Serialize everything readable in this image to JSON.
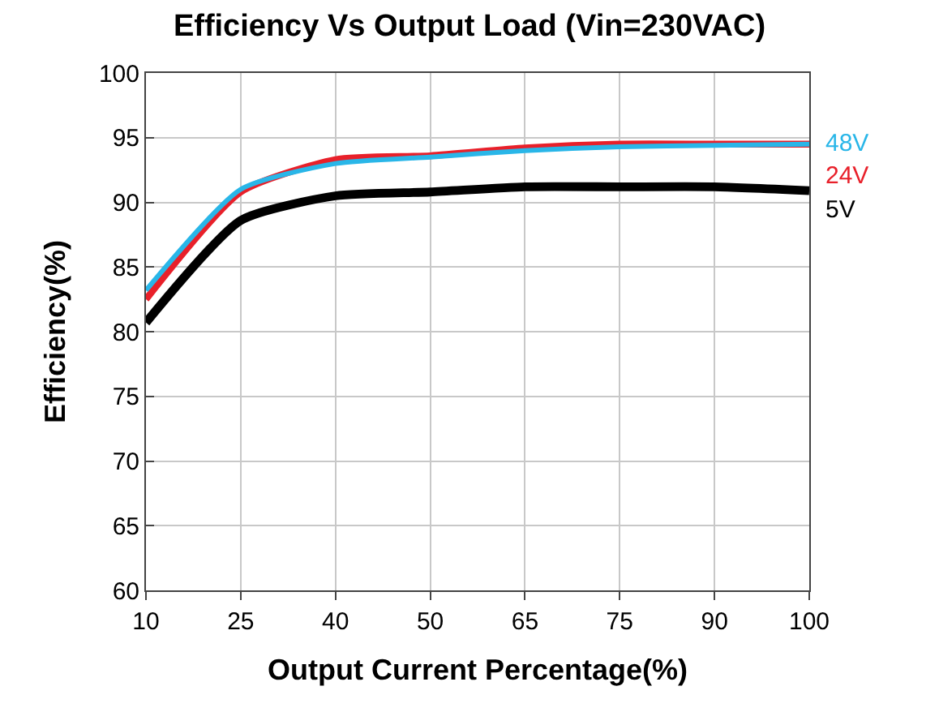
{
  "chart_data": {
    "type": "line",
    "title": "Efficiency Vs Output Load (Vin=230VAC)",
    "xlabel": "Output Current Percentage(%)",
    "ylabel": "Efficiency(%)",
    "categories": [
      "10",
      "25",
      "40",
      "50",
      "65",
      "75",
      "90",
      "100"
    ],
    "series": [
      {
        "name": "48V",
        "color": "#29b6e8",
        "values": [
          83.2,
          91.0,
          93.0,
          93.5,
          94.0,
          94.3,
          94.4,
          94.5
        ]
      },
      {
        "name": "24V",
        "color": "#e8202a",
        "values": [
          82.5,
          90.8,
          93.3,
          93.6,
          94.2,
          94.5,
          94.5,
          94.5
        ]
      },
      {
        "name": "5V",
        "color": "#000000",
        "values": [
          80.7,
          88.6,
          90.5,
          90.8,
          91.2,
          91.2,
          91.2,
          90.9
        ]
      }
    ],
    "ylim": [
      60,
      100
    ],
    "yticks": [
      60,
      65,
      70,
      75,
      80,
      85,
      90,
      95,
      100
    ],
    "grid": true,
    "legend": "right"
  }
}
